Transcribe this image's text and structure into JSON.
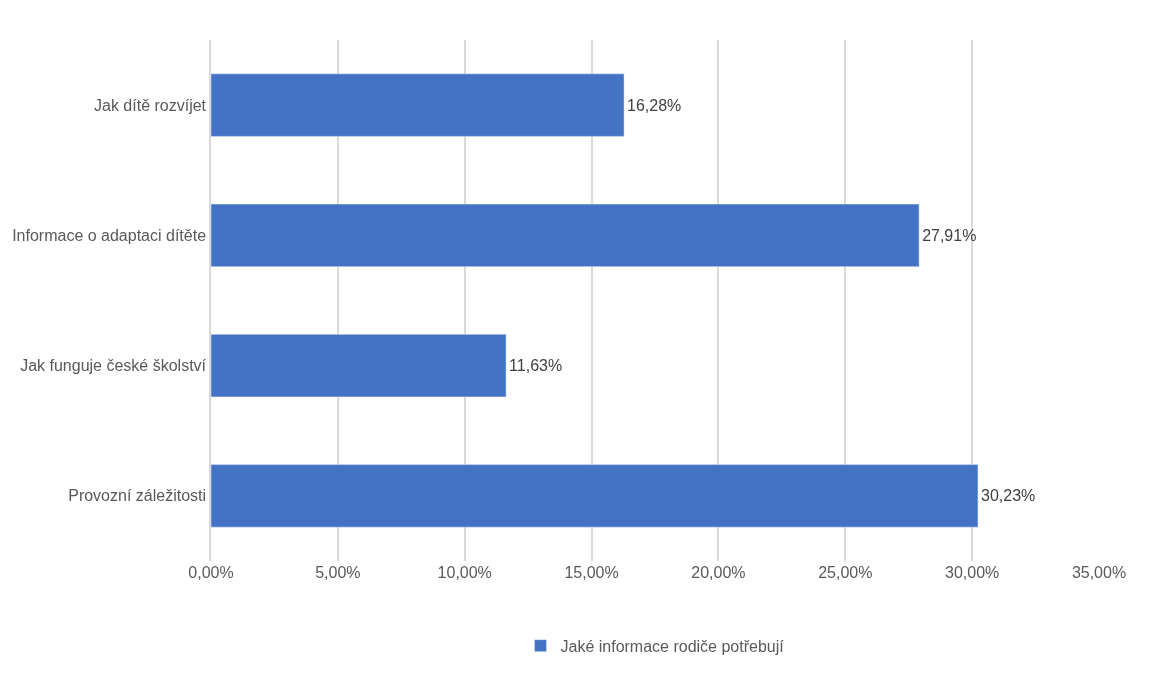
{
  "chart_data": {
    "type": "bar",
    "orientation": "horizontal",
    "categories": [
      "Jak dítě rozvíjet",
      "Informace o adaptaci dítěte",
      "Jak funguje české školství",
      "Provozní záležitosti"
    ],
    "series": [
      {
        "name": "Jaké informace rodiče potřebují",
        "color": "#4472c4",
        "values": [
          16.28,
          27.91,
          11.63,
          30.23
        ],
        "value_labels": [
          "16,28%",
          "27,91%",
          "11,63%",
          "30,23%"
        ]
      }
    ],
    "xlim": [
      0,
      35
    ],
    "xticks": [
      {
        "value": 0,
        "label": "0,00%"
      },
      {
        "value": 5,
        "label": "5,00%"
      },
      {
        "value": 10,
        "label": "10,00%"
      },
      {
        "value": 15,
        "label": "15,00%"
      },
      {
        "value": 20,
        "label": "20,00%"
      },
      {
        "value": 25,
        "label": "25,00%"
      },
      {
        "value": 30,
        "label": "30,00%"
      },
      {
        "value": 35,
        "label": "35,00%"
      }
    ],
    "grid": "x",
    "legend": "bottom"
  }
}
